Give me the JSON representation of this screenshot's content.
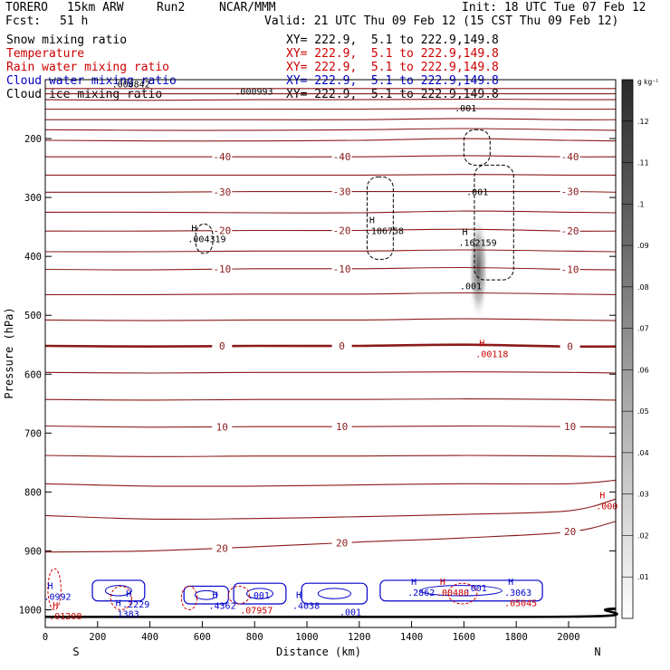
{
  "header": {
    "model": "TORERO",
    "resolution": "15km ARW",
    "run": "Run2",
    "org": "NCAR/MMM",
    "init": "Init: 18 UTC Tue 07 Feb 12",
    "fcst_label": "Fcst:",
    "fcst_value": "51 h",
    "valid": "Valid: 21 UTC Thu 09 Feb 12 (15 CST Thu 09 Feb 12)"
  },
  "fields": [
    {
      "name": "Snow mixing ratio",
      "xy": "XY= 222.9,  5.1 to 222.9,149.8",
      "color": "#000000"
    },
    {
      "name": "Temperature",
      "xy": "XY= 222.9,  5.1 to 222.9,149.8",
      "color": "#cc0000"
    },
    {
      "name": "Rain water mixing ratio",
      "xy": "XY= 222.9,  5.1 to 222.9,149.8",
      "color": "#cc0000"
    },
    {
      "name": "Cloud water mixing ratio",
      "xy": "XY= 222.9,  5.1 to 222.9,149.8",
      "color": "#0000cc"
    },
    {
      "name": "Cloud ice mixing ratio",
      "xy": "XY= 222.9,  5.1 to 222.9,149.8",
      "color": "#000000"
    }
  ],
  "chart_data": {
    "type": "contour",
    "xlabel": "Distance (km)",
    "ylabel": "Pressure (hPa)",
    "xlim": [
      0,
      2180
    ],
    "ylim": [
      1030,
      100
    ],
    "x_ticks": [
      0,
      200,
      400,
      600,
      800,
      1000,
      1200,
      1400,
      1600,
      1800,
      2000
    ],
    "y_ticks": [
      200,
      300,
      400,
      500,
      600,
      700,
      800,
      900,
      1000
    ],
    "left_end_label": "S",
    "right_end_label": "N",
    "colorbar": {
      "unit": "g kg⁻¹",
      "ticks": [
        ".01",
        ".02",
        ".03",
        ".04",
        ".05",
        ".06",
        ".07",
        ".08",
        ".09",
        ".1",
        ".11",
        ".12"
      ]
    },
    "temperature_contours": [
      {
        "p": [
          115,
          115,
          115,
          115,
          115,
          115,
          115
        ],
        "x": [
          0,
          400,
          800,
          1200,
          1600,
          2000,
          2180
        ]
      },
      {
        "p": [
          124,
          124,
          124,
          124,
          124,
          124,
          124
        ],
        "x": [
          0,
          400,
          800,
          1200,
          1600,
          2000,
          2180
        ]
      },
      {
        "p": [
          134,
          135,
          134,
          134,
          133,
          134,
          134
        ],
        "x": [
          0,
          400,
          800,
          1200,
          1600,
          2000,
          2180
        ]
      },
      {
        "p": [
          150,
          150,
          150,
          150,
          149,
          150,
          150
        ],
        "x": [
          0,
          400,
          800,
          1200,
          1600,
          2000,
          2180
        ]
      },
      {
        "p": [
          168,
          168,
          168,
          168,
          166,
          168,
          168
        ],
        "x": [
          0,
          400,
          800,
          1200,
          1600,
          2000,
          2180
        ]
      },
      {
        "p": [
          185,
          186,
          186,
          185,
          183,
          185,
          186
        ],
        "x": [
          0,
          400,
          800,
          1200,
          1600,
          2000,
          2180
        ]
      },
      {
        "p": [
          203,
          204,
          204,
          203,
          200,
          203,
          204
        ],
        "x": [
          0,
          400,
          800,
          1200,
          1600,
          2000,
          2180
        ]
      },
      {
        "p": [
          231,
          231,
          231,
          231,
          229,
          231,
          231
        ],
        "x": [
          0,
          400,
          800,
          1200,
          1600,
          2000,
          2180
        ],
        "label": "-40"
      },
      {
        "p": [
          262,
          262,
          262,
          262,
          261,
          262,
          262
        ],
        "x": [
          0,
          400,
          800,
          1200,
          1600,
          2000,
          2180
        ]
      },
      {
        "p": [
          291,
          291,
          290,
          290,
          290,
          290,
          291
        ],
        "x": [
          0,
          400,
          800,
          1200,
          1600,
          2000,
          2180
        ],
        "label": "-30"
      },
      {
        "p": [
          325,
          325,
          326,
          326,
          323,
          325,
          326
        ],
        "x": [
          0,
          400,
          800,
          1200,
          1600,
          2000,
          2180
        ]
      },
      {
        "p": [
          357,
          357,
          356,
          356,
          354,
          357,
          357
        ],
        "x": [
          0,
          400,
          800,
          1200,
          1600,
          2000,
          2180
        ],
        "label": "-20"
      },
      {
        "p": [
          392,
          392,
          391,
          391,
          389,
          391,
          392
        ],
        "x": [
          0,
          400,
          800,
          1200,
          1600,
          2000,
          2180
        ]
      },
      {
        "p": [
          422,
          423,
          421,
          421,
          419,
          422,
          423
        ],
        "x": [
          0,
          400,
          800,
          1200,
          1600,
          2000,
          2180
        ],
        "label": "-10"
      },
      {
        "p": [
          465,
          465,
          464,
          464,
          462,
          464,
          465
        ],
        "x": [
          0,
          400,
          800,
          1200,
          1600,
          2000,
          2180
        ]
      },
      {
        "p": [
          508,
          509,
          508,
          508,
          506,
          508,
          509
        ],
        "x": [
          0,
          400,
          800,
          1200,
          1600,
          2000,
          2180
        ]
      },
      {
        "p": [
          552,
          553,
          552,
          552,
          550,
          553,
          553
        ],
        "x": [
          0,
          400,
          800,
          1200,
          1600,
          2000,
          2180
        ],
        "label": "0",
        "bold": true
      },
      {
        "p": [
          597,
          598,
          597,
          597,
          596,
          597,
          598
        ],
        "x": [
          0,
          400,
          800,
          1200,
          1600,
          2000,
          2180
        ]
      },
      {
        "p": [
          643,
          644,
          643,
          643,
          642,
          643,
          644
        ],
        "x": [
          0,
          400,
          800,
          1200,
          1600,
          2000,
          2180
        ]
      },
      {
        "p": [
          688,
          690,
          689,
          689,
          688,
          689,
          690
        ],
        "x": [
          0,
          400,
          800,
          1200,
          1600,
          2000,
          2180
        ],
        "label": "10"
      },
      {
        "p": [
          738,
          740,
          739,
          739,
          738,
          739,
          740
        ],
        "x": [
          0,
          400,
          800,
          1200,
          1600,
          2000,
          2180
        ]
      },
      {
        "p": [
          786,
          790,
          790,
          788,
          786,
          786,
          780
        ],
        "x": [
          0,
          400,
          800,
          1200,
          1600,
          2000,
          2180
        ]
      },
      {
        "p": [
          840,
          846,
          845,
          842,
          838,
          832,
          812
        ],
        "x": [
          0,
          400,
          800,
          1200,
          1600,
          2000,
          2180
        ]
      },
      {
        "p": [
          902,
          900,
          893,
          885,
          878,
          868,
          850
        ],
        "x": [
          0,
          400,
          800,
          1200,
          1600,
          2000,
          2180
        ],
        "label": "20"
      }
    ],
    "cloud_water_regions": [
      {
        "x": [
          180,
          380
        ],
        "p": [
          950,
          985
        ]
      },
      {
        "x": [
          530,
          700
        ],
        "p": [
          960,
          990
        ]
      },
      {
        "x": [
          720,
          920
        ],
        "p": [
          955,
          990
        ]
      },
      {
        "x": [
          980,
          1230
        ],
        "p": [
          955,
          990
        ]
      },
      {
        "x": [
          1280,
          1900
        ],
        "p": [
          950,
          985
        ]
      }
    ],
    "rain_regions": [
      {
        "x": [
          10,
          60
        ],
        "p": [
          930,
          1000
        ]
      },
      {
        "x": [
          250,
          330
        ],
        "p": [
          960,
          1000
        ]
      },
      {
        "x": [
          520,
          580
        ],
        "p": [
          960,
          1000
        ]
      },
      {
        "x": [
          700,
          780
        ],
        "p": [
          960,
          990
        ]
      },
      {
        "x": [
          1540,
          1650
        ],
        "p": [
          955,
          990
        ]
      }
    ],
    "snow_regions": [
      {
        "x": [
          1230,
          1330
        ],
        "p": [
          265,
          405
        ]
      },
      {
        "x": [
          1600,
          1700
        ],
        "p": [
          185,
          245
        ]
      },
      {
        "x": [
          1640,
          1790
        ],
        "p": [
          245,
          440
        ]
      },
      {
        "x": [
          575,
          640
        ],
        "p": [
          345,
          395
        ]
      }
    ],
    "snow_shade": {
      "x": 1655,
      "p_top": 330,
      "p_bottom": 510
    },
    "maxima_labels": [
      {
        "x": 600,
        "p": 370,
        "text": ".004319",
        "marker": "H",
        "color": "#000000"
      },
      {
        "x": 1280,
        "p": 356,
        "text": ".106758",
        "marker": "H",
        "color": "#000000"
      },
      {
        "x": 1635,
        "p": 376,
        "text": ".162159",
        "marker": "H",
        "color": "#000000"
      },
      {
        "x": 1665,
        "p": 290,
        "text": ".001",
        "marker": "",
        "color": "#000000"
      },
      {
        "x": 1620,
        "p": 148,
        "text": ".001",
        "marker": "",
        "color": "#000000"
      },
      {
        "x": 1640,
        "p": 450,
        "text": ".001",
        "marker": "",
        "color": "#000000"
      },
      {
        "x": 310,
        "p": 107,
        "text": ".000842",
        "marker": "",
        "color": "#000000"
      },
      {
        "x": 780,
        "p": 119,
        "text": ".000993",
        "marker": "",
        "color": "#000000"
      },
      {
        "x": 1700,
        "p": 565,
        "text": ".00118",
        "marker": "H",
        "color": "#cc0000"
      },
      {
        "x": 2160,
        "p": 823,
        "text": ".000",
        "marker": "H",
        "color": "#cc0000"
      },
      {
        "x": 50,
        "p": 977,
        "text": ".0992",
        "marker": "H",
        "color": "#0000cc"
      },
      {
        "x": 70,
        "p": 1010,
        "text": ".01208",
        "marker": "H",
        "color": "#cc0000"
      },
      {
        "x": 310,
        "p": 1006,
        "text": ".1383",
        "marker": "H",
        "color": "#0000cc"
      },
      {
        "x": 350,
        "p": 990,
        "text": ".2229",
        "marker": "H",
        "color": "#0000cc"
      },
      {
        "x": 680,
        "p": 992,
        "text": ".4362",
        "marker": "H",
        "color": "#0000cc"
      },
      {
        "x": 800,
        "p": 1000,
        "text": ".07957",
        "marker": "",
        "color": "#cc0000"
      },
      {
        "x": 830,
        "p": 975,
        "text": ".001",
        "marker": "",
        "color": "#0000cc"
      },
      {
        "x": 1000,
        "p": 992,
        "text": ".4038",
        "marker": "H",
        "color": "#0000cc"
      },
      {
        "x": 1180,
        "p": 1003,
        "text": ".001",
        "marker": "",
        "color": "#0000cc"
      },
      {
        "x": 1440,
        "p": 970,
        "text": ".2862",
        "marker": "H",
        "color": "#0000cc"
      },
      {
        "x": 1550,
        "p": 970,
        "text": ".00480",
        "marker": "H",
        "color": "#cc0000"
      },
      {
        "x": 1660,
        "p": 962,
        "text": ".001",
        "marker": "",
        "color": "#0000cc"
      },
      {
        "x": 1810,
        "p": 970,
        "text": ".3063",
        "marker": "H",
        "color": "#0000cc"
      },
      {
        "x": 1810,
        "p": 988,
        "text": ".05045",
        "marker": "",
        "color": "#cc0000"
      }
    ]
  }
}
